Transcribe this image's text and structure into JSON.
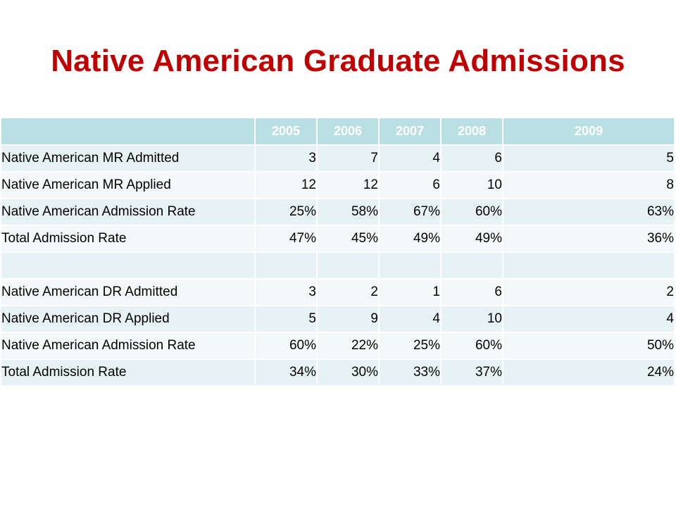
{
  "title": "Native American Graduate Admissions",
  "table": {
    "header": [
      "",
      "2005",
      "2006",
      "2007",
      "2008",
      "2009"
    ],
    "rows": [
      [
        "Native American MR Admitted",
        "3",
        "7",
        "4",
        "6",
        "5"
      ],
      [
        "Native American MR Applied",
        "12",
        "12",
        "6",
        "10",
        "8"
      ],
      [
        "Native American Admission Rate",
        "25%",
        "58%",
        "67%",
        "60%",
        "63%"
      ],
      [
        "Total Admission Rate",
        "47%",
        "45%",
        "49%",
        "49%",
        "36%"
      ],
      [
        "",
        "",
        "",
        "",
        "",
        ""
      ],
      [
        "Native American DR Admitted",
        "3",
        "2",
        "1",
        "6",
        "2"
      ],
      [
        "Native American DR Applied",
        "5",
        "9",
        "4",
        "10",
        "4"
      ],
      [
        "Native American Admission Rate",
        "60%",
        "22%",
        "25%",
        "60%",
        "50%"
      ],
      [
        "Total Admission Rate",
        "34%",
        "30%",
        "33%",
        "37%",
        "24%"
      ]
    ]
  },
  "colors": {
    "title": "#c00000",
    "header_bg": "#b9dfe2",
    "row_bg_a": "#e7f2f4",
    "row_bg_b": "#f3f8f9"
  }
}
